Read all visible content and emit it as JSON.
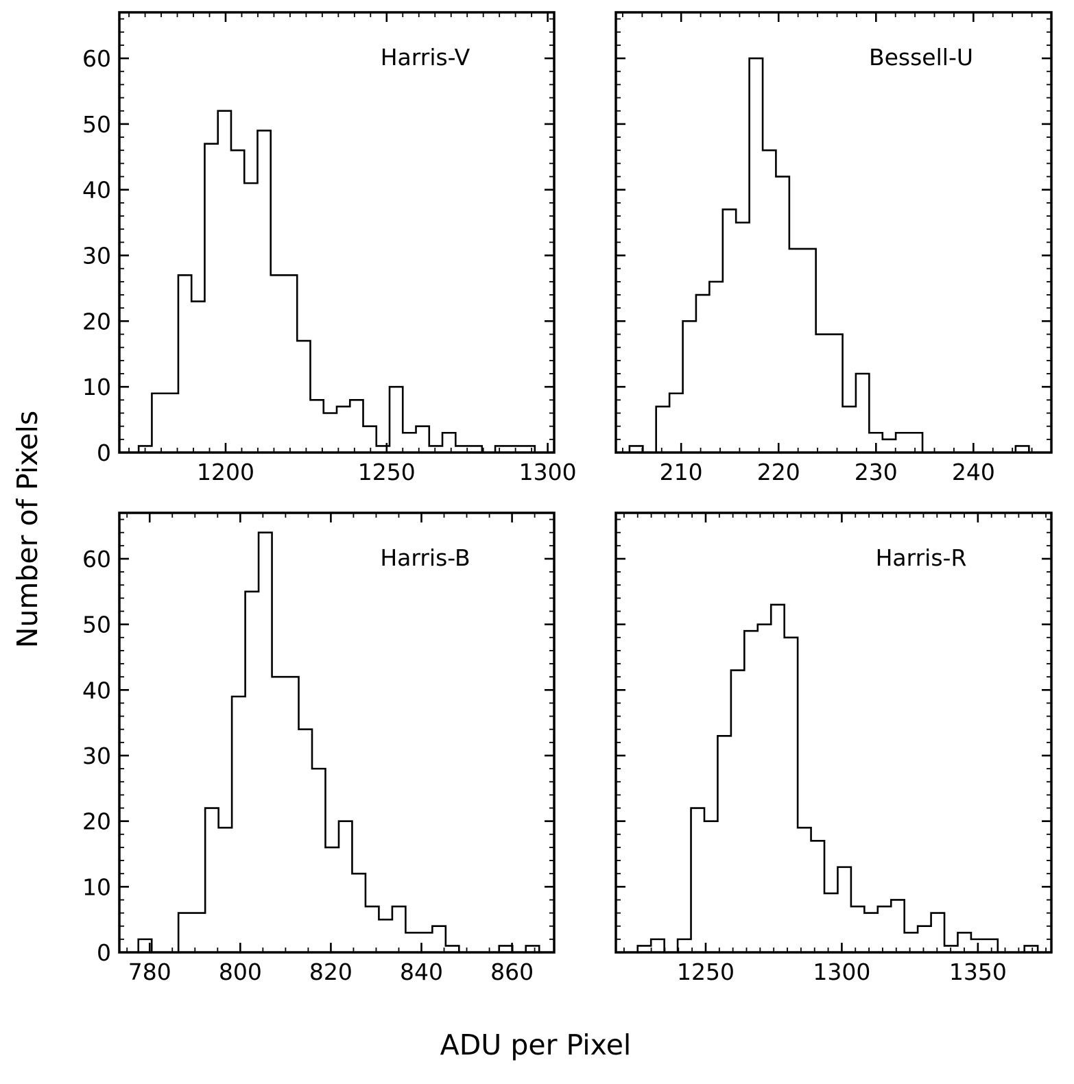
{
  "figure": {
    "xlabel": "ADU per Pixel",
    "ylabel": "Number of Pixels"
  },
  "chart_data": [
    {
      "type": "bar",
      "title": "Harris-V",
      "xlim": [
        1167,
        1302
      ],
      "ylim": [
        0,
        67
      ],
      "xticks": [
        1200,
        1250,
        1300
      ],
      "xtick_labels": [
        "1200",
        "1250",
        "1300"
      ],
      "yticks": [
        0,
        10,
        20,
        30,
        40,
        50,
        60
      ],
      "ytick_labels": [
        "0",
        "10",
        "20",
        "30",
        "40",
        "50",
        "60"
      ],
      "bin_edges": [
        1173,
        1177.1,
        1181.2,
        1185.3,
        1189.4,
        1193.5,
        1197.6,
        1201.7,
        1205.8,
        1209.9,
        1214,
        1218.1,
        1222.2,
        1226.3,
        1230.4,
        1234.5,
        1238.6,
        1242.7,
        1246.8,
        1250.9,
        1255,
        1259.1,
        1263.2,
        1267.3,
        1271.4,
        1275.5,
        1279.6,
        1283.7,
        1287.8,
        1291.9,
        1296
      ],
      "counts": [
        1,
        9,
        9,
        27,
        23,
        47,
        52,
        46,
        41,
        49,
        27,
        27,
        17,
        8,
        6,
        7,
        8,
        4,
        1,
        10,
        3,
        4,
        1,
        3,
        1,
        1,
        0,
        1,
        1,
        1
      ],
      "xlabel": "",
      "ylabel": "",
      "grid": false
    },
    {
      "type": "bar",
      "title": "Bessell-U",
      "xlim": [
        203.3,
        248.0
      ],
      "ylim": [
        0,
        67
      ],
      "xticks": [
        210,
        220,
        230,
        240
      ],
      "xtick_labels": [
        "210",
        "220",
        "230",
        "240"
      ],
      "yticks": [
        0,
        10,
        20,
        30,
        40,
        50,
        60
      ],
      "ytick_labels": [],
      "bin_edges": [
        204.7,
        206.07,
        207.43,
        208.8,
        210.17,
        211.53,
        212.9,
        214.27,
        215.63,
        217,
        218.37,
        219.73,
        221.1,
        222.47,
        223.83,
        225.2,
        226.57,
        227.93,
        229.3,
        230.67,
        232.03,
        233.4,
        234.77,
        236.13,
        237.5,
        238.87,
        240.23,
        241.6,
        242.97,
        244.33,
        245.7
      ],
      "counts": [
        1,
        0,
        7,
        9,
        20,
        24,
        26,
        37,
        35,
        60,
        46,
        42,
        31,
        31,
        18,
        18,
        7,
        12,
        3,
        2,
        3,
        3,
        0,
        0,
        0,
        0,
        0,
        0,
        0,
        1
      ],
      "xlabel": "",
      "ylabel": "",
      "grid": false
    },
    {
      "type": "bar",
      "title": "Harris-B",
      "xlim": [
        773.3,
        869.3
      ],
      "ylim": [
        0,
        67
      ],
      "xticks": [
        780,
        800,
        820,
        840,
        860
      ],
      "xtick_labels": [
        "780",
        "800",
        "820",
        "840",
        "860"
      ],
      "yticks": [
        0,
        10,
        20,
        30,
        40,
        50,
        60
      ],
      "ytick_labels": [
        "0",
        "10",
        "20",
        "30",
        "40",
        "50",
        "60"
      ],
      "bin_edges": [
        777.5,
        780.45,
        783.4,
        786.35,
        789.3,
        792.25,
        795.2,
        798.15,
        801.1,
        804.05,
        807,
        809.95,
        812.9,
        815.85,
        818.8,
        821.75,
        824.7,
        827.65,
        830.6,
        833.55,
        836.5,
        839.45,
        842.4,
        845.35,
        848.3,
        851.25,
        854.2,
        857.15,
        860.1,
        863.05,
        866
      ],
      "counts": [
        2,
        0,
        0,
        6,
        6,
        22,
        19,
        39,
        55,
        64,
        42,
        42,
        34,
        28,
        16,
        20,
        12,
        7,
        5,
        7,
        3,
        3,
        4,
        1,
        0,
        0,
        0,
        1,
        0,
        1
      ],
      "xlabel": "",
      "ylabel": "",
      "grid": false
    },
    {
      "type": "bar",
      "title": "Harris-R",
      "xlim": [
        1217,
        1377
      ],
      "ylim": [
        0,
        67
      ],
      "xticks": [
        1250,
        1300,
        1350
      ],
      "xtick_labels": [
        "1250",
        "1300",
        "1350"
      ],
      "yticks": [
        0,
        10,
        20,
        30,
        40,
        50,
        60
      ],
      "ytick_labels": [],
      "bin_edges": [
        1225,
        1229.9,
        1234.8,
        1239.7,
        1244.6,
        1249.5,
        1254.4,
        1259.3,
        1264.2,
        1269.1,
        1274,
        1278.9,
        1283.8,
        1288.7,
        1293.6,
        1298.5,
        1303.4,
        1308.3,
        1313.2,
        1318.1,
        1323,
        1327.9,
        1332.8,
        1337.7,
        1342.6,
        1347.5,
        1352.4,
        1357.3,
        1362.2,
        1367.1,
        1372
      ],
      "counts": [
        1,
        2,
        0,
        2,
        22,
        20,
        33,
        43,
        49,
        50,
        53,
        48,
        19,
        17,
        9,
        13,
        7,
        6,
        7,
        8,
        3,
        4,
        6,
        1,
        3,
        2,
        2,
        0,
        0,
        1
      ],
      "xlabel": "",
      "ylabel": "",
      "grid": false
    }
  ]
}
